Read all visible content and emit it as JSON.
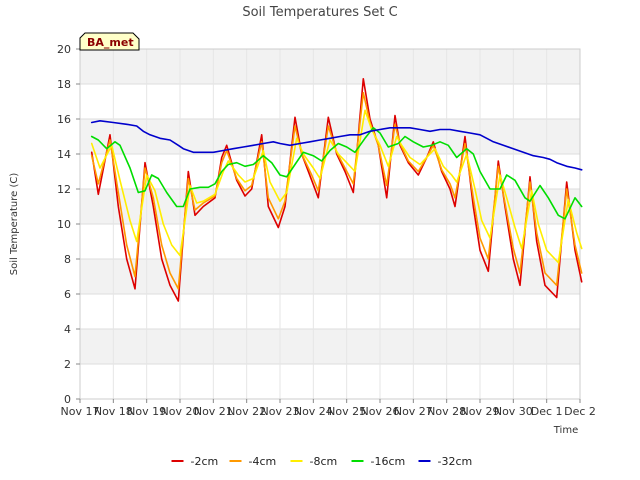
{
  "chart_data": {
    "type": "line",
    "title": "Soil Temperatures Set C",
    "xlabel": "Time",
    "ylabel": "Soil Temperature (C)",
    "badge": "BA_met",
    "ylim": [
      0,
      20
    ],
    "yticks": [
      0,
      2,
      4,
      6,
      8,
      10,
      12,
      14,
      16,
      18,
      20
    ],
    "xlim": [
      0,
      15
    ],
    "xticks": [
      {
        "x": 0,
        "label": "Nov 17"
      },
      {
        "x": 1,
        "label": "Nov 18"
      },
      {
        "x": 2,
        "label": "Nov 19"
      },
      {
        "x": 3,
        "label": "Nov 20"
      },
      {
        "x": 4,
        "label": "Nov 21"
      },
      {
        "x": 5,
        "label": "Nov 22"
      },
      {
        "x": 6,
        "label": "Nov 23"
      },
      {
        "x": 7,
        "label": "Nov 24"
      },
      {
        "x": 8,
        "label": "Nov 25"
      },
      {
        "x": 9,
        "label": "Nov 26"
      },
      {
        "x": 10,
        "label": "Nov 27"
      },
      {
        "x": 11,
        "label": "Nov 28"
      },
      {
        "x": 12,
        "label": "Nov 29"
      },
      {
        "x": 13,
        "label": "Nov 30"
      },
      {
        "x": 14,
        "label": "Dec 1"
      },
      {
        "x": 15,
        "label": "Dec 2"
      }
    ],
    "legend_position": "bottom",
    "series": [
      {
        "name": "-2cm",
        "color": "#dd0000",
        "points": [
          [
            0.35,
            14.1
          ],
          [
            0.55,
            11.7
          ],
          [
            0.9,
            15.1
          ],
          [
            1.15,
            11.0
          ],
          [
            1.4,
            8.0
          ],
          [
            1.65,
            6.3
          ],
          [
            1.95,
            13.5
          ],
          [
            2.2,
            11.0
          ],
          [
            2.45,
            8.0
          ],
          [
            2.7,
            6.5
          ],
          [
            2.95,
            5.6
          ],
          [
            3.25,
            13.0
          ],
          [
            3.45,
            10.5
          ],
          [
            3.7,
            11.0
          ],
          [
            4.05,
            11.5
          ],
          [
            4.25,
            13.8
          ],
          [
            4.4,
            14.5
          ],
          [
            4.7,
            12.5
          ],
          [
            4.95,
            11.6
          ],
          [
            5.15,
            12.0
          ],
          [
            5.45,
            15.1
          ],
          [
            5.65,
            11.0
          ],
          [
            5.95,
            9.8
          ],
          [
            6.15,
            11.0
          ],
          [
            6.45,
            16.1
          ],
          [
            6.65,
            14.0
          ],
          [
            6.95,
            12.5
          ],
          [
            7.15,
            11.5
          ],
          [
            7.45,
            16.1
          ],
          [
            7.7,
            14.0
          ],
          [
            7.95,
            13.0
          ],
          [
            8.2,
            11.8
          ],
          [
            8.5,
            18.3
          ],
          [
            8.7,
            16.0
          ],
          [
            8.95,
            14.5
          ],
          [
            9.2,
            11.5
          ],
          [
            9.45,
            16.2
          ],
          [
            9.6,
            14.5
          ],
          [
            9.85,
            13.5
          ],
          [
            10.15,
            12.8
          ],
          [
            10.4,
            13.8
          ],
          [
            10.6,
            14.7
          ],
          [
            10.85,
            13.0
          ],
          [
            11.1,
            12.0
          ],
          [
            11.25,
            11.0
          ],
          [
            11.55,
            15.0
          ],
          [
            11.8,
            11.0
          ],
          [
            12.0,
            8.5
          ],
          [
            12.25,
            7.3
          ],
          [
            12.55,
            13.6
          ],
          [
            12.75,
            11.0
          ],
          [
            13.0,
            8.0
          ],
          [
            13.2,
            6.5
          ],
          [
            13.5,
            12.7
          ],
          [
            13.7,
            9.0
          ],
          [
            13.95,
            6.5
          ],
          [
            14.3,
            5.8
          ],
          [
            14.6,
            12.4
          ],
          [
            14.85,
            8.5
          ],
          [
            15.05,
            6.7
          ]
        ]
      },
      {
        "name": "-4cm",
        "color": "#ff9900",
        "points": [
          [
            0.35,
            13.9
          ],
          [
            0.55,
            12.3
          ],
          [
            0.9,
            14.8
          ],
          [
            1.15,
            11.8
          ],
          [
            1.4,
            8.8
          ],
          [
            1.65,
            7.0
          ],
          [
            1.95,
            13.2
          ],
          [
            2.2,
            11.5
          ],
          [
            2.45,
            8.8
          ],
          [
            2.7,
            7.2
          ],
          [
            2.95,
            6.3
          ],
          [
            3.25,
            12.6
          ],
          [
            3.45,
            10.8
          ],
          [
            3.7,
            11.2
          ],
          [
            4.05,
            11.6
          ],
          [
            4.25,
            13.5
          ],
          [
            4.4,
            14.2
          ],
          [
            4.7,
            12.6
          ],
          [
            4.95,
            11.9
          ],
          [
            5.15,
            12.2
          ],
          [
            5.45,
            14.7
          ],
          [
            5.65,
            11.5
          ],
          [
            5.95,
            10.3
          ],
          [
            6.15,
            11.3
          ],
          [
            6.45,
            15.6
          ],
          [
            6.65,
            14.0
          ],
          [
            6.95,
            12.8
          ],
          [
            7.15,
            11.9
          ],
          [
            7.45,
            15.6
          ],
          [
            7.7,
            14.1
          ],
          [
            7.95,
            13.2
          ],
          [
            8.2,
            12.3
          ],
          [
            8.5,
            17.5
          ],
          [
            8.7,
            15.8
          ],
          [
            8.95,
            14.5
          ],
          [
            9.2,
            12.2
          ],
          [
            9.45,
            15.7
          ],
          [
            9.6,
            14.6
          ],
          [
            9.85,
            13.6
          ],
          [
            10.15,
            13.0
          ],
          [
            10.4,
            13.8
          ],
          [
            10.6,
            14.5
          ],
          [
            10.85,
            13.1
          ],
          [
            11.1,
            12.3
          ],
          [
            11.25,
            11.5
          ],
          [
            11.55,
            14.6
          ],
          [
            11.8,
            11.5
          ],
          [
            12.0,
            9.2
          ],
          [
            12.25,
            8.0
          ],
          [
            12.55,
            13.3
          ],
          [
            12.75,
            11.2
          ],
          [
            13.0,
            8.6
          ],
          [
            13.2,
            7.2
          ],
          [
            13.5,
            12.4
          ],
          [
            13.7,
            9.5
          ],
          [
            13.95,
            7.2
          ],
          [
            14.3,
            6.5
          ],
          [
            14.6,
            12.0
          ],
          [
            14.85,
            8.8
          ],
          [
            15.05,
            7.2
          ]
        ]
      },
      {
        "name": "-8cm",
        "color": "#ffee00",
        "points": [
          [
            0.35,
            14.6
          ],
          [
            0.6,
            13.2
          ],
          [
            0.95,
            14.5
          ],
          [
            1.2,
            12.5
          ],
          [
            1.5,
            10.2
          ],
          [
            1.7,
            9.0
          ],
          [
            2.0,
            12.8
          ],
          [
            2.25,
            11.9
          ],
          [
            2.5,
            10.0
          ],
          [
            2.75,
            8.8
          ],
          [
            3.0,
            8.2
          ],
          [
            3.3,
            12.2
          ],
          [
            3.5,
            11.2
          ],
          [
            3.7,
            11.3
          ],
          [
            4.05,
            11.7
          ],
          [
            4.3,
            13.0
          ],
          [
            4.45,
            13.6
          ],
          [
            4.75,
            12.8
          ],
          [
            4.95,
            12.4
          ],
          [
            5.2,
            12.6
          ],
          [
            5.5,
            14.2
          ],
          [
            5.7,
            12.4
          ],
          [
            6.0,
            11.3
          ],
          [
            6.2,
            11.8
          ],
          [
            6.5,
            14.9
          ],
          [
            6.7,
            14.0
          ],
          [
            7.0,
            13.2
          ],
          [
            7.2,
            12.6
          ],
          [
            7.5,
            14.8
          ],
          [
            7.75,
            14.0
          ],
          [
            8.0,
            13.5
          ],
          [
            8.25,
            13.0
          ],
          [
            8.55,
            16.5
          ],
          [
            8.75,
            15.4
          ],
          [
            9.0,
            14.5
          ],
          [
            9.25,
            13.3
          ],
          [
            9.5,
            15.0
          ],
          [
            9.65,
            14.5
          ],
          [
            9.9,
            13.8
          ],
          [
            10.2,
            13.4
          ],
          [
            10.45,
            13.9
          ],
          [
            10.65,
            14.3
          ],
          [
            10.9,
            13.3
          ],
          [
            11.15,
            12.8
          ],
          [
            11.3,
            12.4
          ],
          [
            11.6,
            14.0
          ],
          [
            11.85,
            12.0
          ],
          [
            12.05,
            10.2
          ],
          [
            12.3,
            9.2
          ],
          [
            12.6,
            12.8
          ],
          [
            12.8,
            11.5
          ],
          [
            13.05,
            9.8
          ],
          [
            13.25,
            8.6
          ],
          [
            13.55,
            11.9
          ],
          [
            13.75,
            10.0
          ],
          [
            14.0,
            8.5
          ],
          [
            14.35,
            7.8
          ],
          [
            14.65,
            11.4
          ],
          [
            14.9,
            9.5
          ],
          [
            15.05,
            8.6
          ]
        ]
      },
      {
        "name": "-16cm",
        "color": "#00dd00",
        "points": [
          [
            0.35,
            15.0
          ],
          [
            0.55,
            14.8
          ],
          [
            0.8,
            14.3
          ],
          [
            1.05,
            14.7
          ],
          [
            1.2,
            14.5
          ],
          [
            1.5,
            13.2
          ],
          [
            1.75,
            11.8
          ],
          [
            1.95,
            11.9
          ],
          [
            2.15,
            12.8
          ],
          [
            2.35,
            12.6
          ],
          [
            2.6,
            11.8
          ],
          [
            2.9,
            11.0
          ],
          [
            3.1,
            11.0
          ],
          [
            3.3,
            12.0
          ],
          [
            3.6,
            12.1
          ],
          [
            3.85,
            12.1
          ],
          [
            4.05,
            12.3
          ],
          [
            4.25,
            13.0
          ],
          [
            4.45,
            13.4
          ],
          [
            4.7,
            13.5
          ],
          [
            4.95,
            13.3
          ],
          [
            5.2,
            13.4
          ],
          [
            5.5,
            13.9
          ],
          [
            5.75,
            13.5
          ],
          [
            6.0,
            12.8
          ],
          [
            6.2,
            12.7
          ],
          [
            6.45,
            13.4
          ],
          [
            6.7,
            14.1
          ],
          [
            7.0,
            13.9
          ],
          [
            7.25,
            13.6
          ],
          [
            7.5,
            14.2
          ],
          [
            7.75,
            14.6
          ],
          [
            8.0,
            14.4
          ],
          [
            8.25,
            14.1
          ],
          [
            8.55,
            14.9
          ],
          [
            8.8,
            15.5
          ],
          [
            9.0,
            15.2
          ],
          [
            9.25,
            14.4
          ],
          [
            9.55,
            14.6
          ],
          [
            9.75,
            15.0
          ],
          [
            10.0,
            14.7
          ],
          [
            10.3,
            14.4
          ],
          [
            10.55,
            14.5
          ],
          [
            10.8,
            14.7
          ],
          [
            11.05,
            14.5
          ],
          [
            11.3,
            13.8
          ],
          [
            11.6,
            14.3
          ],
          [
            11.8,
            14.0
          ],
          [
            12.0,
            13.0
          ],
          [
            12.3,
            12.0
          ],
          [
            12.6,
            12.0
          ],
          [
            12.8,
            12.8
          ],
          [
            13.05,
            12.5
          ],
          [
            13.35,
            11.5
          ],
          [
            13.5,
            11.3
          ],
          [
            13.8,
            12.2
          ],
          [
            14.05,
            11.5
          ],
          [
            14.35,
            10.5
          ],
          [
            14.55,
            10.3
          ],
          [
            14.85,
            11.5
          ],
          [
            15.05,
            11.0
          ]
        ]
      },
      {
        "name": "-32cm",
        "color": "#0000cc",
        "points": [
          [
            0.35,
            15.8
          ],
          [
            0.6,
            15.9
          ],
          [
            1.0,
            15.8
          ],
          [
            1.4,
            15.7
          ],
          [
            1.7,
            15.6
          ],
          [
            1.9,
            15.3
          ],
          [
            2.1,
            15.1
          ],
          [
            2.4,
            14.9
          ],
          [
            2.7,
            14.8
          ],
          [
            2.95,
            14.5
          ],
          [
            3.1,
            14.3
          ],
          [
            3.4,
            14.1
          ],
          [
            3.7,
            14.1
          ],
          [
            4.0,
            14.1
          ],
          [
            4.3,
            14.2
          ],
          [
            4.6,
            14.3
          ],
          [
            4.9,
            14.4
          ],
          [
            5.2,
            14.5
          ],
          [
            5.5,
            14.6
          ],
          [
            5.8,
            14.7
          ],
          [
            6.0,
            14.6
          ],
          [
            6.3,
            14.5
          ],
          [
            6.6,
            14.6
          ],
          [
            6.9,
            14.7
          ],
          [
            7.2,
            14.8
          ],
          [
            7.5,
            14.9
          ],
          [
            7.8,
            15.0
          ],
          [
            8.1,
            15.1
          ],
          [
            8.4,
            15.1
          ],
          [
            8.7,
            15.3
          ],
          [
            9.0,
            15.4
          ],
          [
            9.3,
            15.5
          ],
          [
            9.6,
            15.5
          ],
          [
            9.9,
            15.5
          ],
          [
            10.2,
            15.4
          ],
          [
            10.5,
            15.3
          ],
          [
            10.8,
            15.4
          ],
          [
            11.1,
            15.4
          ],
          [
            11.4,
            15.3
          ],
          [
            11.7,
            15.2
          ],
          [
            12.0,
            15.1
          ],
          [
            12.2,
            14.9
          ],
          [
            12.4,
            14.7
          ],
          [
            12.7,
            14.5
          ],
          [
            13.0,
            14.3
          ],
          [
            13.3,
            14.1
          ],
          [
            13.6,
            13.9
          ],
          [
            13.9,
            13.8
          ],
          [
            14.1,
            13.7
          ],
          [
            14.3,
            13.5
          ],
          [
            14.6,
            13.3
          ],
          [
            14.85,
            13.2
          ],
          [
            15.05,
            13.1
          ]
        ]
      }
    ]
  }
}
